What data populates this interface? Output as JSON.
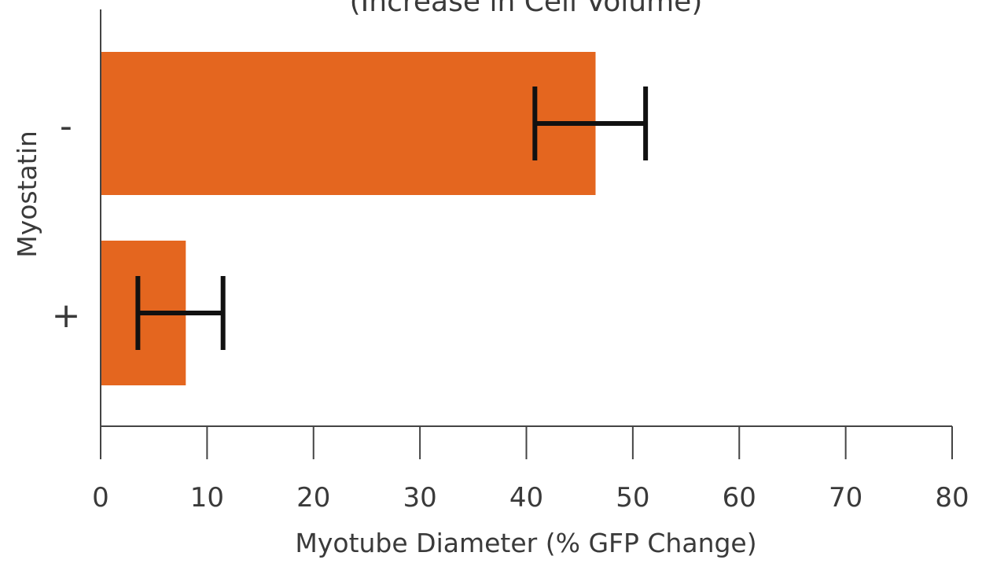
{
  "chart_data": {
    "type": "bar",
    "orientation": "horizontal",
    "title": "(Increase in Cell Volume)",
    "xlabel": "Myotube Diameter (% GFP Change)",
    "ylabel": "Myostatin",
    "categories": [
      "-",
      "+"
    ],
    "values": [
      46.5,
      8
    ],
    "error_bars": [
      {
        "low": 40.8,
        "high": 51.2
      },
      {
        "low": 3.5,
        "high": 11.5
      }
    ],
    "xlim": [
      0,
      80
    ],
    "xticks": [
      0,
      10,
      20,
      30,
      40,
      50,
      60,
      70,
      80
    ],
    "xtick_labels": [
      "0",
      "10",
      "20",
      "30",
      "40",
      "50",
      "60",
      "70",
      "80"
    ],
    "grid": false,
    "legend": "none",
    "bar_color": "#e4661f",
    "error_bar_color": "#111111"
  }
}
